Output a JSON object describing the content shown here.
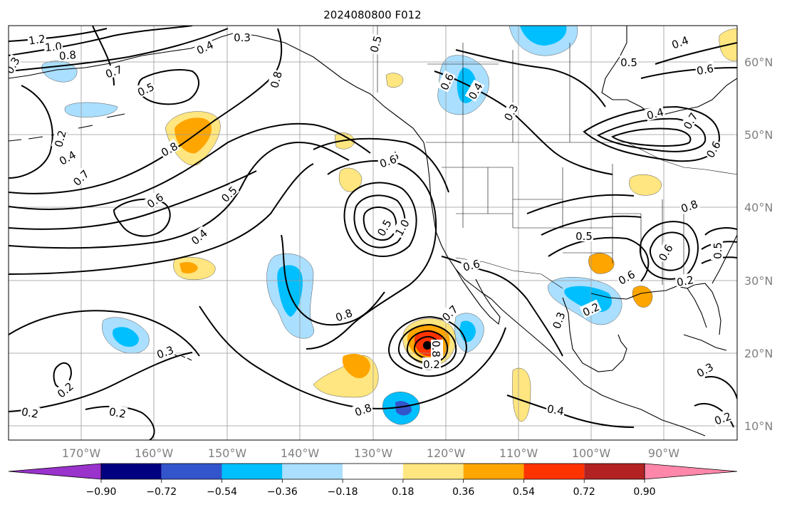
{
  "title": "2024080800 F012",
  "projection": {
    "lon_range": [
      -180,
      -80
    ],
    "lat_range": [
      8,
      65
    ]
  },
  "lat_labels": [
    "10°N",
    "20°N",
    "30°N",
    "40°N",
    "50°N",
    "60°N"
  ],
  "lon_labels": [
    "170°W",
    "160°W",
    "150°W",
    "140°W",
    "130°W",
    "120°W",
    "110°W",
    "100°W",
    "90°W"
  ],
  "colorbar": {
    "colors": [
      "#9933cc",
      "#000080",
      "#3355cc",
      "#00bfff",
      "#aadfff",
      "#ffffff",
      "#ffe680",
      "#ffa500",
      "#ff3300",
      "#b22222",
      "#ff88aa"
    ],
    "tick_labels": [
      "−0.90",
      "−0.72",
      "−0.54",
      "−0.36",
      "−0.18",
      "0.18",
      "0.36",
      "0.54",
      "0.72",
      "0.90"
    ]
  },
  "contour_labels": [
    "1.2",
    "1.0",
    "0.8",
    "0.7",
    "0.5",
    "0.3",
    "0.2",
    "0.4",
    "0.7",
    "0.8",
    "0.6",
    "0.5",
    "0.4",
    "0.3",
    "0.4",
    "0.8",
    "0.5",
    "0.6",
    "0.6",
    "0.4",
    "0.3",
    "0.5",
    "0.4",
    "0.7",
    "0.6",
    "0.8",
    "0.4",
    "0.6",
    "0.7",
    "0.6",
    "0.5",
    "1.0",
    "0.8",
    "0.5",
    "0.6",
    "0.6",
    "0.2",
    "0.3",
    "0.2",
    "0.3",
    "0.2",
    "0.2",
    "0.2",
    "0.4",
    "0.8",
    "0.8",
    "0.2",
    "0.3",
    "0.2",
    "0.5",
    "0.6",
    "0.3"
  ],
  "shaded_regions": [
    {
      "name": "gulf-of-alaska-positive",
      "lon": -154,
      "lat": 50,
      "value": 0.45
    },
    {
      "name": "cyclone-core",
      "lon": -122,
      "lat": 21.5,
      "value": 0.8
    },
    {
      "name": "south-of-cyclone-positive",
      "lon": -128.5,
      "lat": 16.5,
      "value": 0.36
    },
    {
      "name": "subtropical-negative",
      "lon": -140,
      "lat": 28,
      "value": -0.3
    },
    {
      "name": "hawaii-negative",
      "lon": -164,
      "lat": 22,
      "value": -0.36
    },
    {
      "name": "gulf-of-mexico-negative",
      "lon": -97,
      "lat": 28.5,
      "value": -0.4
    },
    {
      "name": "alaska-panhandle-negative",
      "lon": -120.5,
      "lat": 57.5,
      "value": -0.3
    },
    {
      "name": "tropical-negative",
      "lon": -126.5,
      "lat": 12.5,
      "value": -0.5
    }
  ]
}
